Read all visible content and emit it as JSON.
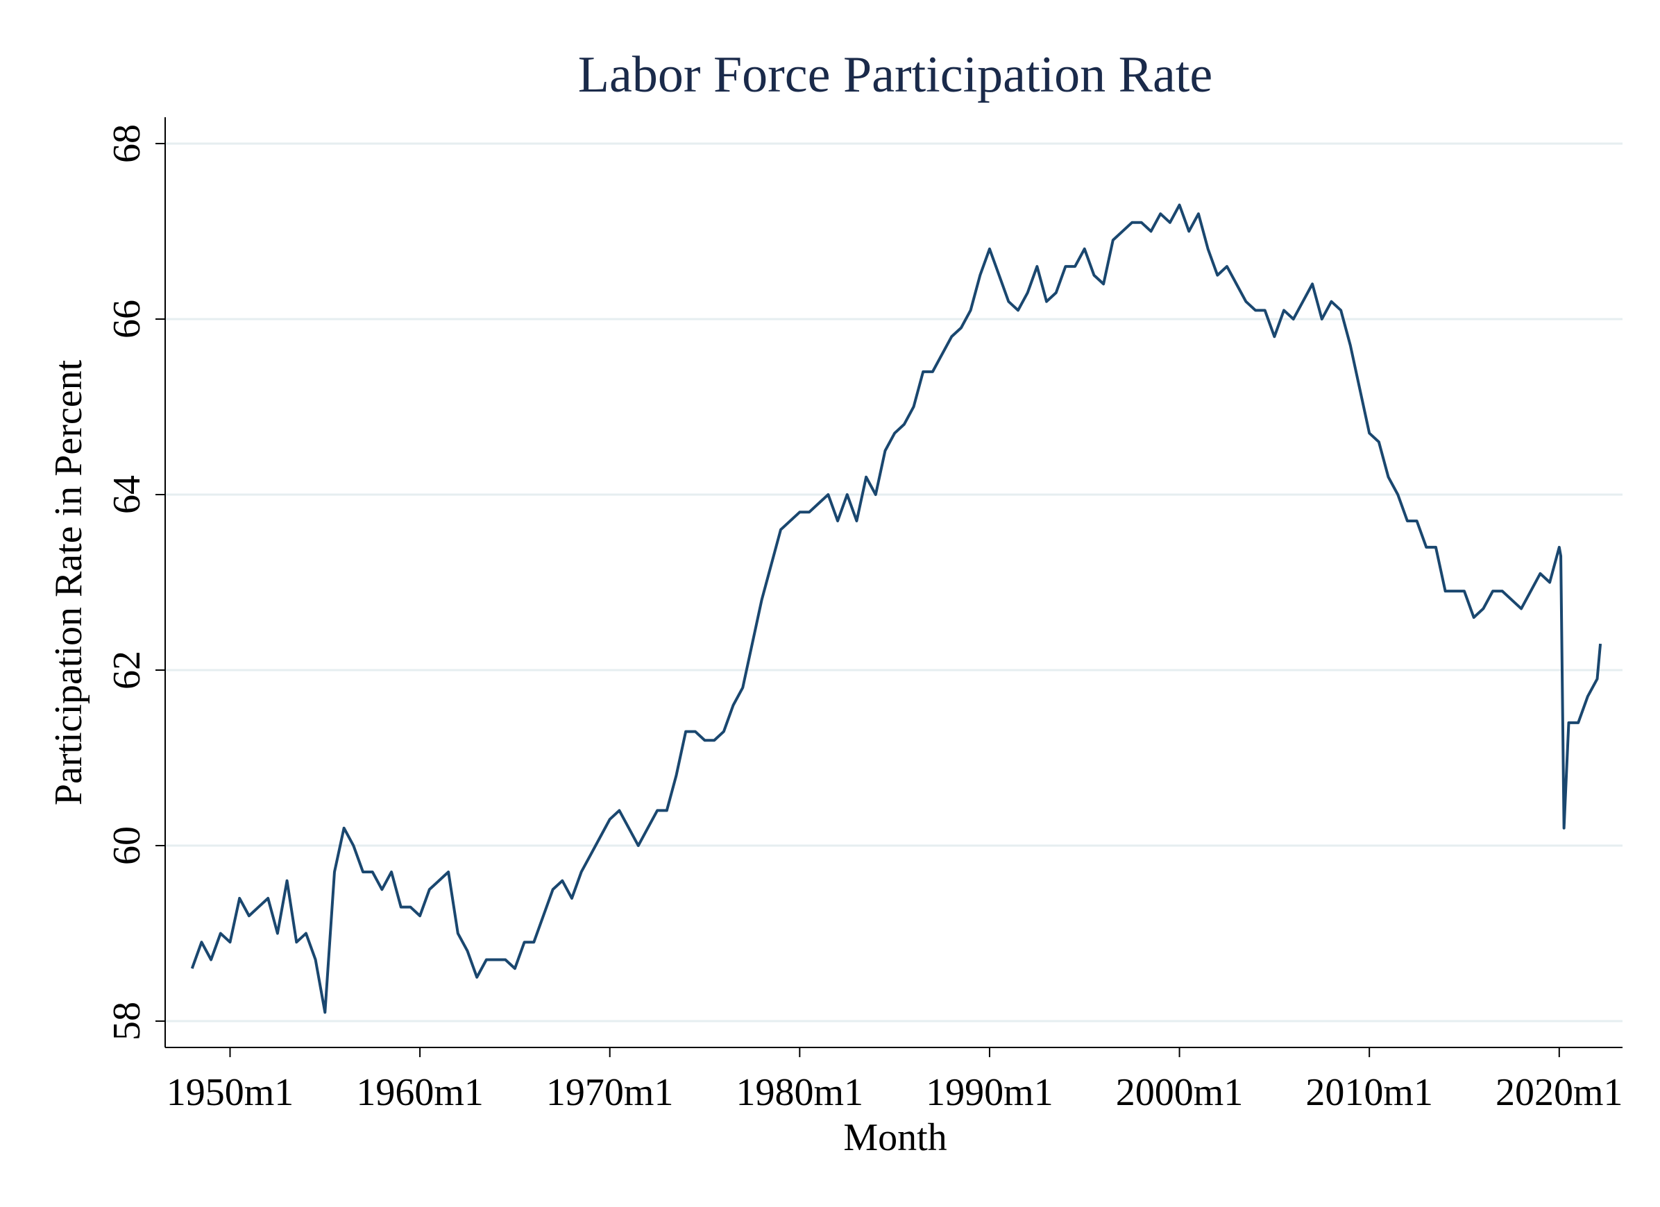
{
  "chart_data": {
    "type": "line",
    "title": "Labor Force Participation Rate",
    "xlabel": "Month",
    "ylabel": "Participation Rate in Percent",
    "x": [
      "1948m1",
      "1948m7",
      "1949m1",
      "1949m7",
      "1950m1",
      "1950m7",
      "1951m1",
      "1951m7",
      "1952m1",
      "1952m7",
      "1953m1",
      "1953m7",
      "1954m1",
      "1954m7",
      "1955m1",
      "1955m7",
      "1956m1",
      "1956m7",
      "1957m1",
      "1957m7",
      "1958m1",
      "1958m7",
      "1959m1",
      "1959m7",
      "1960m1",
      "1960m7",
      "1961m1",
      "1961m7",
      "1962m1",
      "1962m7",
      "1963m1",
      "1963m7",
      "1964m1",
      "1964m7",
      "1965m1",
      "1965m7",
      "1966m1",
      "1966m7",
      "1967m1",
      "1967m7",
      "1968m1",
      "1968m7",
      "1969m1",
      "1969m7",
      "1970m1",
      "1970m7",
      "1971m1",
      "1971m7",
      "1972m1",
      "1972m7",
      "1973m1",
      "1973m7",
      "1974m1",
      "1974m7",
      "1975m1",
      "1975m7",
      "1976m1",
      "1976m7",
      "1977m1",
      "1977m7",
      "1978m1",
      "1978m7",
      "1979m1",
      "1979m7",
      "1980m1",
      "1980m7",
      "1981m1",
      "1981m7",
      "1982m1",
      "1982m7",
      "1983m1",
      "1983m7",
      "1984m1",
      "1984m7",
      "1985m1",
      "1985m7",
      "1986m1",
      "1986m7",
      "1987m1",
      "1987m7",
      "1988m1",
      "1988m7",
      "1989m1",
      "1989m7",
      "1990m1",
      "1990m7",
      "1991m1",
      "1991m7",
      "1992m1",
      "1992m7",
      "1993m1",
      "1993m7",
      "1994m1",
      "1994m7",
      "1995m1",
      "1995m7",
      "1996m1",
      "1996m7",
      "1997m1",
      "1997m7",
      "1998m1",
      "1998m7",
      "1999m1",
      "1999m7",
      "2000m1",
      "2000m7",
      "2001m1",
      "2001m7",
      "2002m1",
      "2002m7",
      "2003m1",
      "2003m7",
      "2004m1",
      "2004m7",
      "2005m1",
      "2005m7",
      "2006m1",
      "2006m7",
      "2007m1",
      "2007m7",
      "2008m1",
      "2008m7",
      "2009m1",
      "2009m7",
      "2010m1",
      "2010m7",
      "2011m1",
      "2011m7",
      "2012m1",
      "2012m7",
      "2013m1",
      "2013m7",
      "2014m1",
      "2014m7",
      "2015m1",
      "2015m7",
      "2016m1",
      "2016m7",
      "2017m1",
      "2017m7",
      "2018m1",
      "2018m7",
      "2019m1",
      "2019m7",
      "2020m1",
      "2020m2",
      "2020m4",
      "2020m7",
      "2021m1",
      "2021m7",
      "2022m1",
      "2022m3"
    ],
    "series": [
      {
        "name": "Participation Rate",
        "color": "#1a476f",
        "values": [
          58.6,
          58.9,
          58.7,
          59.0,
          58.9,
          59.4,
          59.2,
          59.3,
          59.4,
          59.0,
          59.6,
          58.9,
          59.0,
          58.7,
          58.1,
          59.7,
          60.2,
          60.0,
          59.7,
          59.7,
          59.5,
          59.7,
          59.3,
          59.3,
          59.2,
          59.5,
          59.6,
          59.7,
          59.0,
          58.8,
          58.5,
          58.7,
          58.7,
          58.7,
          58.6,
          58.9,
          58.9,
          59.2,
          59.5,
          59.6,
          59.4,
          59.7,
          59.9,
          60.1,
          60.3,
          60.4,
          60.2,
          60.0,
          60.2,
          60.4,
          60.4,
          60.8,
          61.3,
          61.3,
          61.2,
          61.2,
          61.3,
          61.6,
          61.8,
          62.3,
          62.8,
          63.2,
          63.6,
          63.7,
          63.8,
          63.8,
          63.9,
          64.0,
          63.7,
          64.0,
          63.7,
          64.2,
          64.0,
          64.5,
          64.7,
          64.8,
          65.0,
          65.4,
          65.4,
          65.6,
          65.8,
          65.9,
          66.1,
          66.5,
          66.8,
          66.5,
          66.2,
          66.1,
          66.3,
          66.6,
          66.2,
          66.3,
          66.6,
          66.6,
          66.8,
          66.5,
          66.4,
          66.9,
          67.0,
          67.1,
          67.1,
          67.0,
          67.2,
          67.1,
          67.3,
          67.0,
          67.2,
          66.8,
          66.5,
          66.6,
          66.4,
          66.2,
          66.1,
          66.1,
          65.8,
          66.1,
          66.0,
          66.2,
          66.4,
          66.0,
          66.2,
          66.1,
          65.7,
          65.2,
          64.7,
          64.6,
          64.2,
          64.0,
          63.7,
          63.7,
          63.4,
          63.4,
          62.9,
          62.9,
          62.9,
          62.6,
          62.7,
          62.9,
          62.9,
          62.8,
          62.7,
          62.9,
          63.1,
          63.0,
          63.4,
          63.3,
          60.2,
          61.4,
          61.4,
          61.7,
          61.9,
          62.3
        ]
      }
    ],
    "xlim": [
      "1946m8",
      "2023m5"
    ],
    "xticks": [
      "1950m1",
      "1960m1",
      "1970m1",
      "1980m1",
      "1990m1",
      "2000m1",
      "2010m1",
      "2020m1"
    ],
    "ylim": [
      57.7,
      68.3
    ],
    "yticks": [
      58,
      60,
      62,
      64,
      66,
      68
    ],
    "grid": true
  }
}
